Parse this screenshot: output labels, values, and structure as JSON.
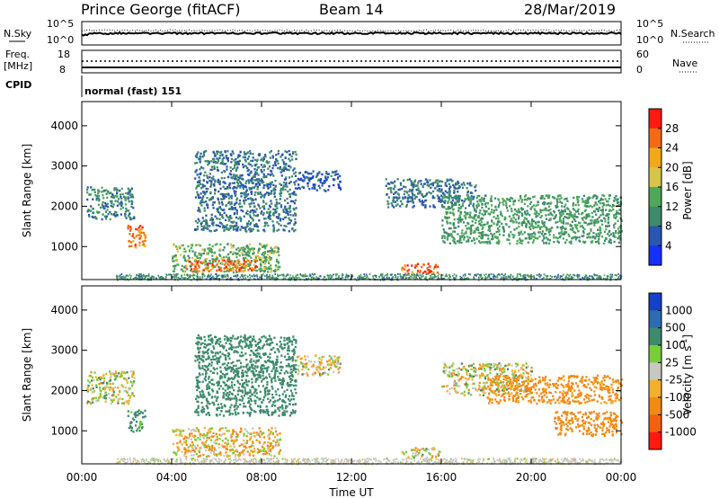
{
  "header": {
    "station": "Prince George (fitACF)",
    "beam": "Beam 14",
    "date": "28/Mar/2019"
  },
  "noise_panel": {
    "left_label": "N.Sky",
    "right_label": "N.Search",
    "left_ticks": [
      "10^5",
      "10^0"
    ],
    "right_ticks": [
      "10^5",
      "10^0"
    ]
  },
  "freq_panel": {
    "left_label_1": "Freq.",
    "left_label_2": "[MHz]",
    "right_label": "Nave",
    "left_ticks": [
      "18",
      "8"
    ],
    "right_ticks": [
      "60",
      "0"
    ]
  },
  "cpid_panel": {
    "label": "CPID",
    "program": "normal (fast) 151"
  },
  "time_axis": {
    "label": "Time UT",
    "ticks": [
      "00:00",
      "04:00",
      "08:00",
      "12:00",
      "16:00",
      "20:00",
      "00:00"
    ]
  },
  "range_axis": {
    "label": "Slant Range [km]",
    "ticks": [
      "1000",
      "2000",
      "3000",
      "4000"
    ]
  },
  "power_colorbar": {
    "label": "Power [dB]",
    "ticks": [
      "4",
      "8",
      "12",
      "16",
      "20",
      "24",
      "28"
    ],
    "colors": [
      "#1530ff",
      "#2a55b0",
      "#3e8a6c",
      "#4fa85a",
      "#d7c54a",
      "#f3a81a",
      "#f36a14",
      "#ff1a10"
    ]
  },
  "velocity_colorbar": {
    "label": "Velocity [m s",
    "label_superscript": "-1",
    "label_close": "]",
    "ticks": [
      "1000",
      "500",
      "100",
      "25",
      "-25",
      "-100",
      "-500",
      "-1000"
    ],
    "colors": [
      "#1540c8",
      "#2a6db0",
      "#3e8a6c",
      "#7bcc3a",
      "#c8c8c0",
      "#f3b030",
      "#f38a14",
      "#f5600e",
      "#ff1a10"
    ]
  },
  "chart_data": [
    {
      "type": "heatmap",
      "title": "Power",
      "xlabel": "Time UT",
      "ylabel": "Slant Range [km]",
      "xlim": [
        0,
        24
      ],
      "ylim": [
        180,
        4600
      ],
      "colorbar": {
        "label": "Power [dB]",
        "range": [
          0,
          32
        ],
        "ticks": [
          4,
          8,
          12,
          16,
          20,
          24,
          28
        ]
      },
      "features": [
        {
          "t0": 0.2,
          "t1": 2.3,
          "r0": 1700,
          "r1": 2500,
          "power": 10
        },
        {
          "t0": 2.0,
          "t1": 2.8,
          "r0": 1000,
          "r1": 1550,
          "power": 26
        },
        {
          "t0": 4.0,
          "t1": 8.8,
          "r0": 380,
          "r1": 1100,
          "power": 14
        },
        {
          "t0": 4.6,
          "t1": 7.8,
          "r0": 400,
          "r1": 700,
          "power": 26
        },
        {
          "t0": 5.0,
          "t1": 9.5,
          "r0": 1400,
          "r1": 3400,
          "power": 8
        },
        {
          "t0": 9.5,
          "t1": 11.5,
          "r0": 2400,
          "r1": 2900,
          "power": 6
        },
        {
          "t0": 14.2,
          "t1": 15.9,
          "r0": 350,
          "r1": 600,
          "power": 27
        },
        {
          "t0": 13.5,
          "t1": 17.5,
          "r0": 2000,
          "r1": 2700,
          "power": 8
        },
        {
          "t0": 16.0,
          "t1": 24.0,
          "r0": 1100,
          "r1": 2300,
          "power": 12
        }
      ]
    },
    {
      "type": "heatmap",
      "title": "Velocity",
      "xlabel": "Time UT",
      "ylabel": "Slant Range [km]",
      "xlim": [
        0,
        24
      ],
      "ylim": [
        180,
        4600
      ],
      "colorbar": {
        "label": "Velocity [m s-1]",
        "range": [
          -1000,
          1000
        ],
        "ticks": [
          1000,
          500,
          100,
          25,
          -25,
          -100,
          -500,
          -1000
        ]
      },
      "features": [
        {
          "t0": 0.2,
          "t1": 2.3,
          "r0": 1700,
          "r1": 2500,
          "velocity": 0
        },
        {
          "t0": 2.0,
          "t1": 2.8,
          "r0": 1000,
          "r1": 1550,
          "velocity": 200
        },
        {
          "t0": 4.0,
          "t1": 8.8,
          "r0": 380,
          "r1": 1100,
          "velocity": -60
        },
        {
          "t0": 5.0,
          "t1": 9.5,
          "r0": 1400,
          "r1": 3400,
          "velocity": 300
        },
        {
          "t0": 9.5,
          "t1": 11.5,
          "r0": 2400,
          "r1": 2900,
          "velocity": 0
        },
        {
          "t0": 14.2,
          "t1": 15.9,
          "r0": 350,
          "r1": 600,
          "velocity": 0
        },
        {
          "t0": 16.0,
          "t1": 20.0,
          "r0": 1900,
          "r1": 2700,
          "velocity": 0
        },
        {
          "t0": 18.0,
          "t1": 24.0,
          "r0": 1700,
          "r1": 2400,
          "velocity": -200
        },
        {
          "t0": 21.0,
          "t1": 24.0,
          "r0": 900,
          "r1": 1500,
          "velocity": -300
        }
      ]
    }
  ]
}
